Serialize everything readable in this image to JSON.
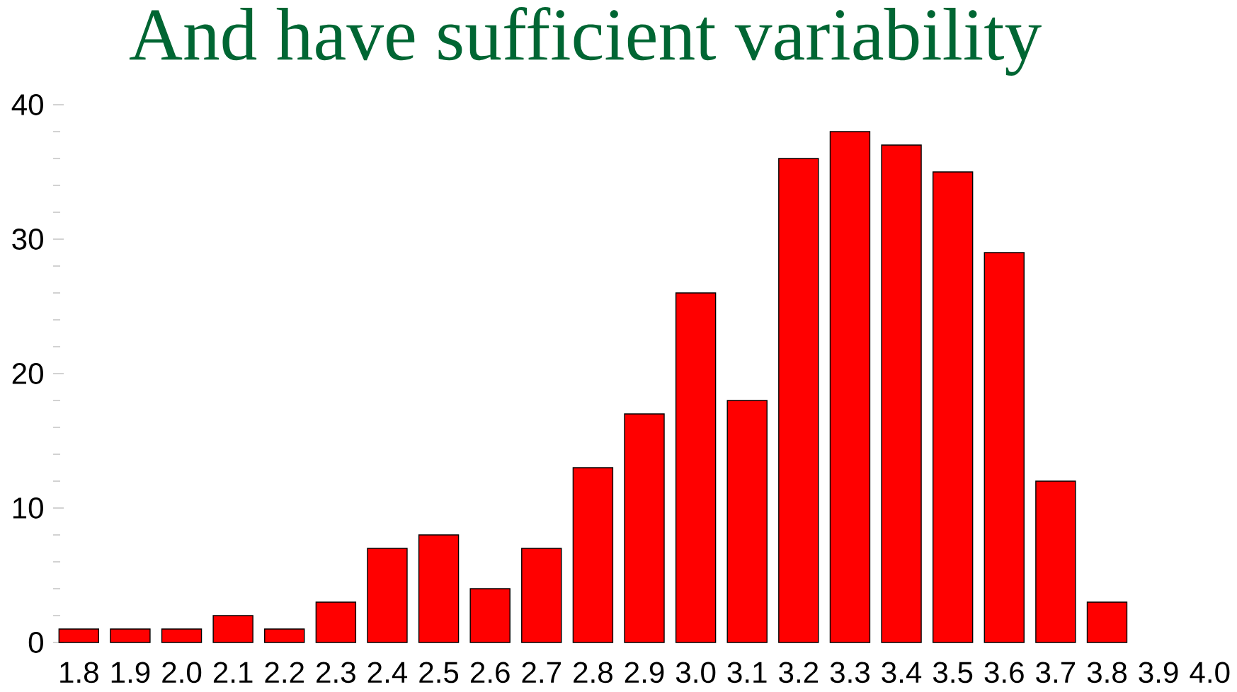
{
  "chart_data": {
    "type": "bar",
    "title": "And have sufficient variability",
    "categories": [
      "1.8",
      "1.9",
      "2.0",
      "2.1",
      "2.2",
      "2.3",
      "2.4",
      "2.5",
      "2.6",
      "2.7",
      "2.8",
      "2.9",
      "3.0",
      "3.1",
      "3.2",
      "3.3",
      "3.4",
      "3.5",
      "3.6",
      "3.7",
      "3.8",
      "3.9",
      "4.0"
    ],
    "values": [
      1,
      1,
      1,
      2,
      1,
      3,
      7,
      8,
      4,
      7,
      13,
      17,
      26,
      18,
      36,
      38,
      37,
      35,
      29,
      12,
      3,
      null,
      null
    ],
    "color": "#ff0000",
    "ylim": [
      0,
      40
    ],
    "yticks": [
      0,
      10,
      20,
      30,
      40
    ],
    "grid": false
  }
}
